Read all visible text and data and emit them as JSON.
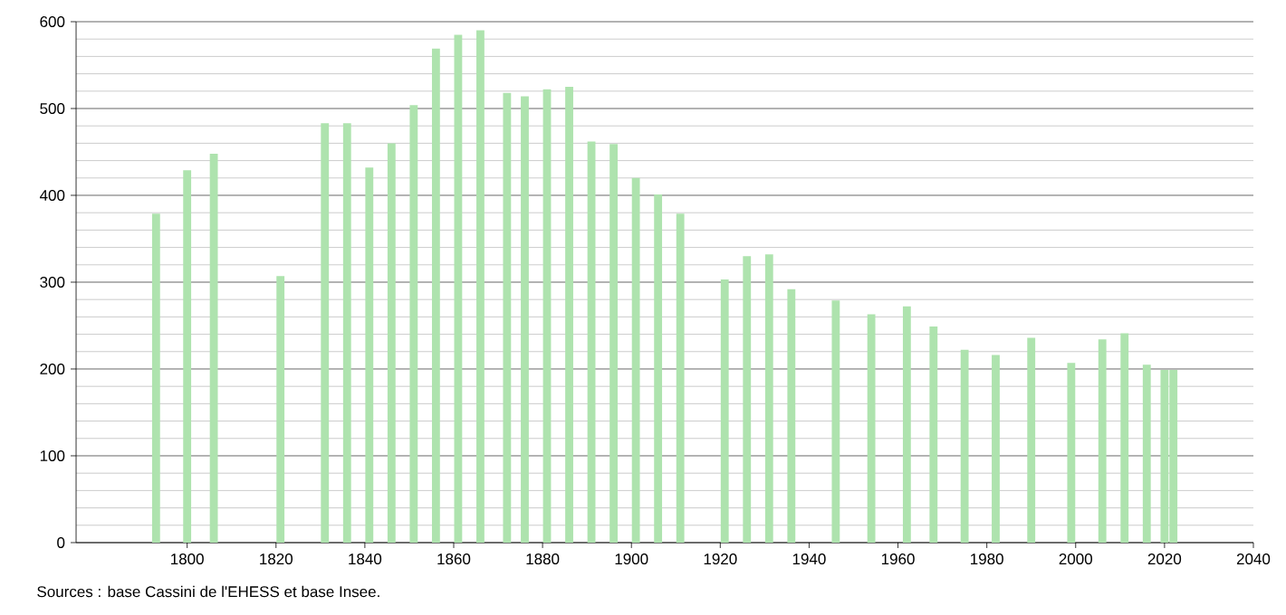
{
  "chart_data": {
    "type": "bar",
    "x": [
      1793,
      1800,
      1806,
      1821,
      1831,
      1836,
      1841,
      1846,
      1851,
      1856,
      1861,
      1866,
      1872,
      1876,
      1881,
      1886,
      1891,
      1896,
      1901,
      1906,
      1911,
      1921,
      1926,
      1931,
      1936,
      1946,
      1954,
      1962,
      1968,
      1975,
      1982,
      1990,
      1999,
      2006,
      2011,
      2016,
      2020,
      2022
    ],
    "values": [
      379,
      429,
      448,
      307,
      483,
      483,
      432,
      460,
      504,
      569,
      585,
      590,
      518,
      514,
      522,
      525,
      462,
      459,
      420,
      401,
      379,
      303,
      330,
      332,
      292,
      279,
      263,
      272,
      249,
      222,
      216,
      236,
      207,
      234,
      241,
      205,
      199,
      199
    ],
    "color": "#aee3ae",
    "xlim": [
      1775,
      2040
    ],
    "xticks": [
      1800,
      1820,
      1840,
      1860,
      1880,
      1900,
      1920,
      1940,
      1960,
      1980,
      2000,
      2020,
      2040
    ],
    "ylim": [
      0,
      600
    ],
    "yticks": [
      0,
      100,
      200,
      300,
      400,
      500,
      600
    ],
    "grid": "y",
    "annotations": [
      "Sources : base Cassini de l'EHESS et base Insee."
    ]
  }
}
